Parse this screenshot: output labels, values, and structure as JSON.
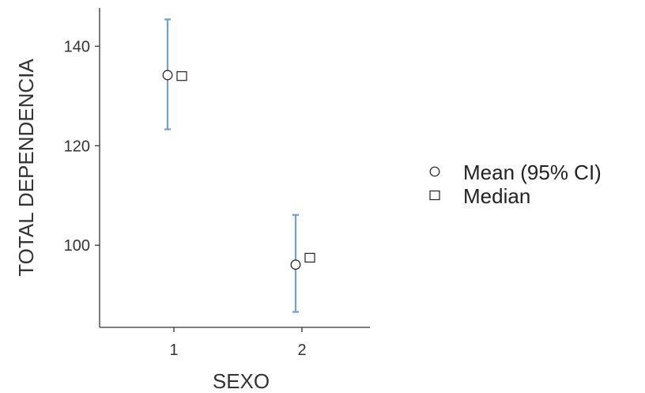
{
  "chart_data": {
    "type": "scatter",
    "xlabel": "SEXO",
    "ylabel": "TOTAL DEPENDENCIA",
    "categories": [
      "1",
      "2"
    ],
    "ylim": [
      83.5,
      147.7
    ],
    "yticks": [
      100,
      120,
      140
    ],
    "grid": false,
    "legend_position": "right",
    "series": [
      {
        "name": "Mean (95% CI)",
        "marker": "circle",
        "values": [
          134.2,
          96.1
        ],
        "ci_lower": [
          123.3,
          86.6
        ],
        "ci_upper": [
          145.4,
          106.1
        ],
        "ci_color": "#6f9fdc"
      },
      {
        "name": "Median",
        "marker": "square",
        "values": [
          134.0,
          97.5
        ]
      }
    ]
  }
}
